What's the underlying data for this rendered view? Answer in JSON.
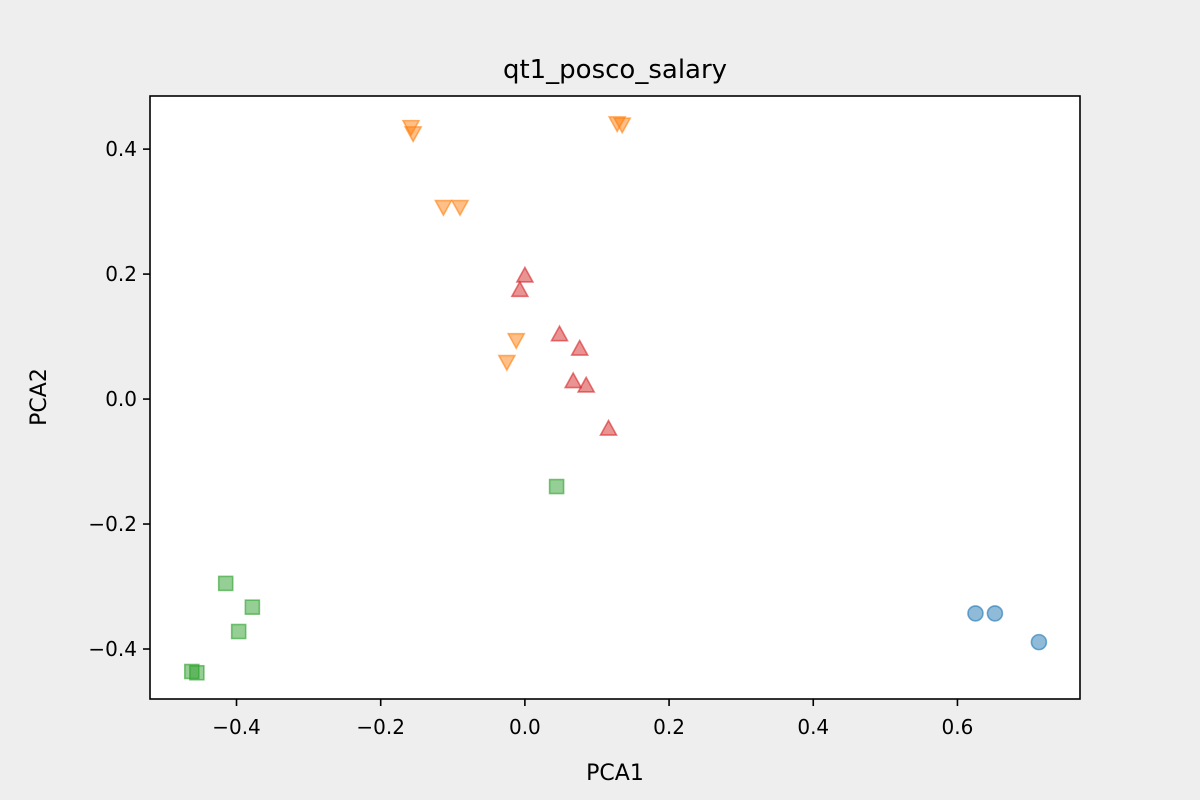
{
  "chart_data": {
    "type": "scatter",
    "title": "qt1_posco_salary",
    "xlabel": "PCA1",
    "ylabel": "PCA2",
    "xlim": [
      -0.52,
      0.77
    ],
    "ylim": [
      -0.48,
      0.485
    ],
    "xticks": [
      -0.4,
      -0.2,
      0.0,
      0.2,
      0.4,
      0.6
    ],
    "xtick_labels": [
      "−0.4",
      "−0.2",
      "0.0",
      "0.2",
      "0.4",
      "0.6"
    ],
    "yticks": [
      -0.4,
      -0.2,
      0.0,
      0.2,
      0.4
    ],
    "ytick_labels": [
      "−0.4",
      "−0.2",
      "0.0",
      "0.2",
      "0.4"
    ],
    "grid": false,
    "legend": "none",
    "series": [
      {
        "marker": "circle",
        "color": "#1f77b4",
        "points": [
          [
            0.625,
            -0.343
          ],
          [
            0.652,
            -0.343
          ],
          [
            0.713,
            -0.389
          ]
        ]
      },
      {
        "marker": "triangle-down",
        "color": "#ff7f0e",
        "points": [
          [
            -0.158,
            0.436
          ],
          [
            -0.155,
            0.426
          ],
          [
            -0.113,
            0.308
          ],
          [
            -0.09,
            0.308
          ],
          [
            0.128,
            0.442
          ],
          [
            0.135,
            0.44
          ],
          [
            -0.012,
            0.095
          ],
          [
            -0.025,
            0.06
          ]
        ]
      },
      {
        "marker": "square",
        "color": "#2ca02c",
        "points": [
          [
            0.044,
            -0.14
          ],
          [
            -0.415,
            -0.295
          ],
          [
            -0.378,
            -0.333
          ],
          [
            -0.397,
            -0.372
          ],
          [
            -0.462,
            -0.436
          ],
          [
            -0.455,
            -0.438
          ]
        ]
      },
      {
        "marker": "triangle-up",
        "color": "#d62728",
        "points": [
          [
            0.0,
            0.197
          ],
          [
            -0.007,
            0.174
          ],
          [
            0.048,
            0.103
          ],
          [
            0.076,
            0.08
          ],
          [
            0.067,
            0.028
          ],
          [
            0.085,
            0.021
          ],
          [
            0.116,
            -0.048
          ]
        ]
      }
    ]
  }
}
